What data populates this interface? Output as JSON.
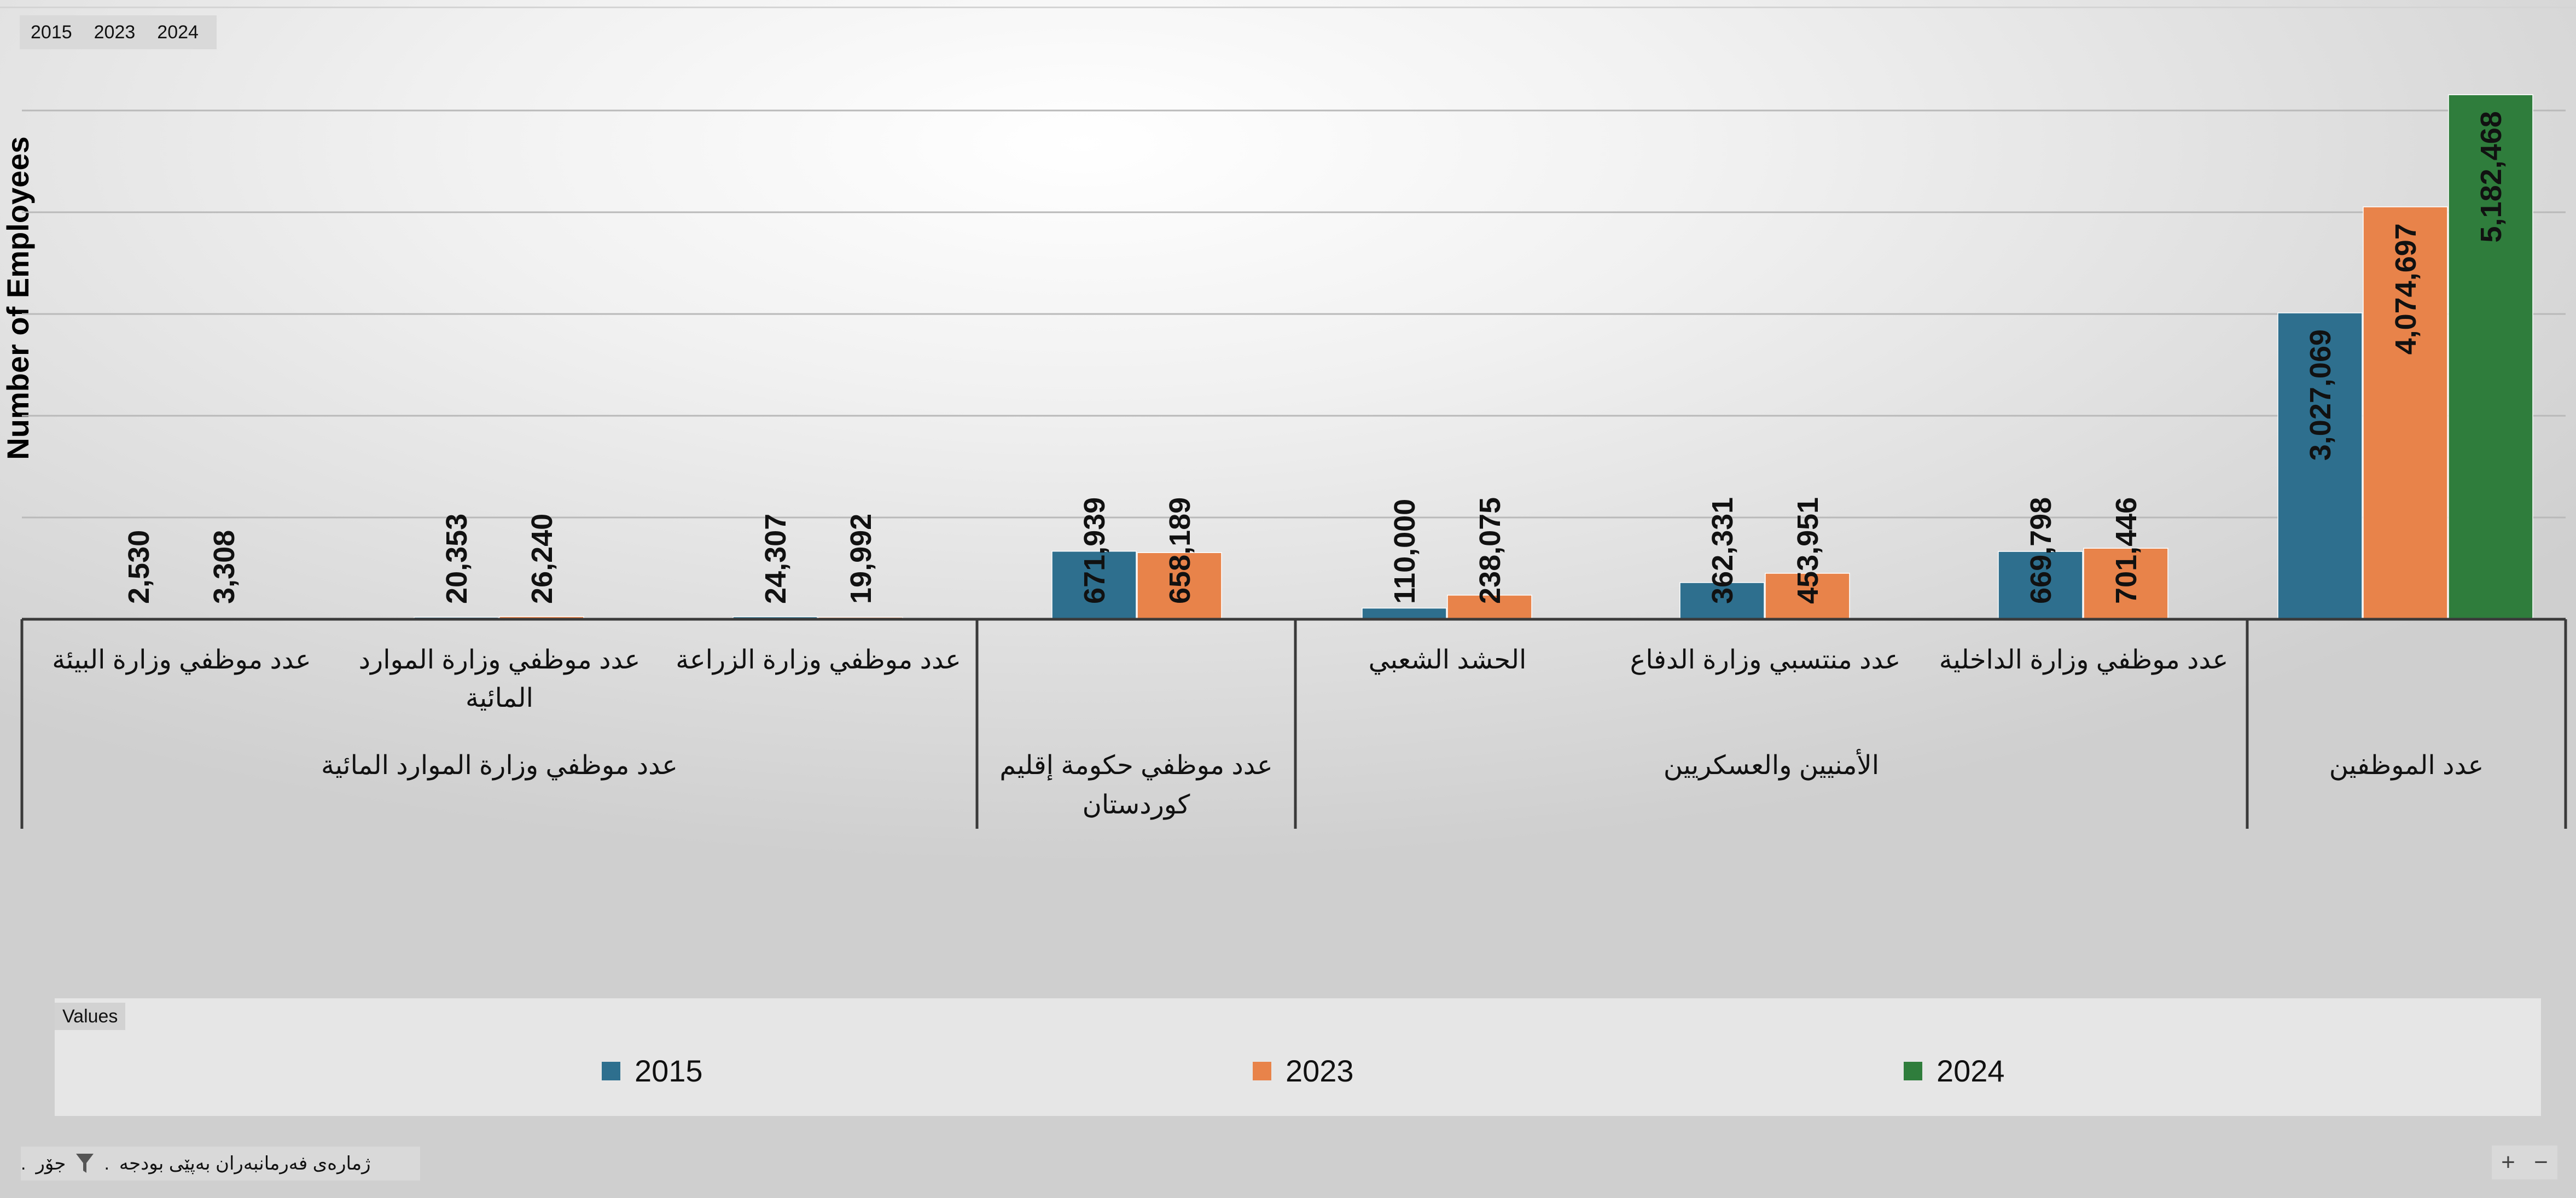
{
  "filter_bar": {
    "title": "ژمارەی فەرمانبەران بەپێی بودجە",
    "dot": ".",
    "field": "جۆر",
    "dot2": "."
  },
  "year_buttons": [
    "2015",
    "2023",
    "2024"
  ],
  "legend": {
    "title": "Values"
  },
  "zoom": {
    "plus": "+",
    "minus": "−"
  },
  "colors": {
    "2015": "#2e6f8e",
    "2023": "#e8834a",
    "2024": "#2f7d3c"
  },
  "chart_data": {
    "type": "bar",
    "ylabel": "Number of Employees",
    "series_names": [
      "2015",
      "2023",
      "2024"
    ],
    "groups": [
      {
        "label": "عدد الموظفين",
        "items": [
          {
            "label": "",
            "values": [
              3027069,
              4074697,
              5182468
            ]
          }
        ]
      },
      {
        "label": "الأمنيين والعسكريين",
        "items": [
          {
            "label": "عدد موظفي وزارة الداخلية",
            "values": [
              669798,
              701446,
              null
            ]
          },
          {
            "label": "عدد منتسبي وزارة الدفاع",
            "values": [
              362331,
              453951,
              null
            ]
          },
          {
            "label": "الحشد الشعبي",
            "values": [
              110000,
              238075,
              null
            ]
          }
        ]
      },
      {
        "label": "عدد موظفي حكومة إقليم كوردستان",
        "items": [
          {
            "label": "",
            "values": [
              671939,
              658189,
              null
            ]
          }
        ]
      },
      {
        "label": "عدد موظفي وزارة الموارد المائية",
        "items": [
          {
            "label": "عدد موظفي وزارة الزراعة",
            "values": [
              24307,
              19992,
              null
            ]
          },
          {
            "label": "عدد موظفي وزارة الموارد المائية",
            "values": [
              20353,
              26240,
              null
            ]
          },
          {
            "label": "عدد موظفي وزارة البيئة",
            "values": [
              2530,
              3308,
              null
            ]
          }
        ]
      }
    ],
    "value_labels": [
      [
        "3,027,069",
        "4,074,697",
        "5,182,468"
      ],
      [
        "669,798",
        "701,446"
      ],
      [
        "362,331",
        "453,951"
      ],
      [
        "110,000",
        "238,075"
      ],
      [
        "671,939",
        "658,189"
      ],
      [
        "24,307",
        "19,992"
      ],
      [
        "20,353",
        "26,240"
      ],
      [
        "2,530",
        "3,308"
      ]
    ],
    "ylim": [
      0,
      5200000
    ],
    "grid": true,
    "legend_position": "bottom"
  }
}
